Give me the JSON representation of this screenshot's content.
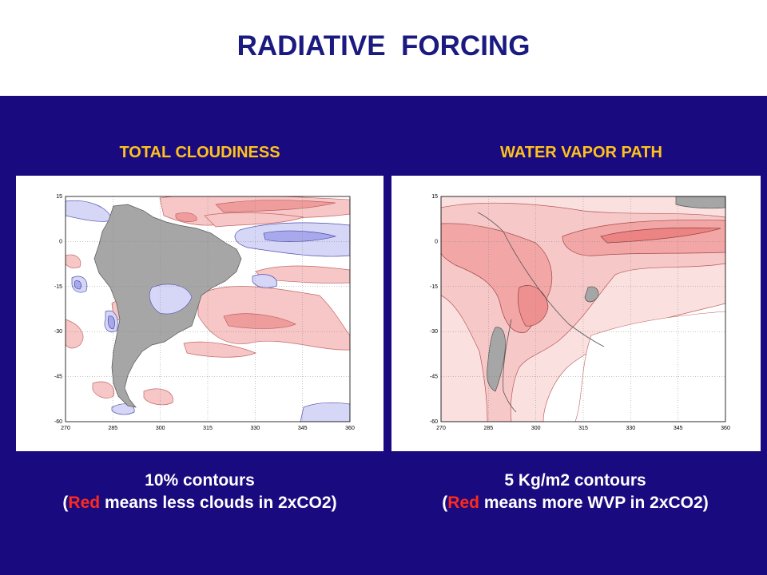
{
  "title": "RADIATIVE  FORCING",
  "colors": {
    "title": "#1a1a80",
    "panel_background": "#1a0a80",
    "subtitle": "#ffc21a",
    "caption": "#ffffff",
    "caption_highlight": "#ff2a1a",
    "land": "#a6a6a6",
    "positive_fill": "#f4b4b4",
    "negative_fill": "#c9c9f4"
  },
  "panels": [
    {
      "subtitle": "TOTAL CLOUDINESS",
      "caption_line1": "10% contours",
      "caption_open": "(",
      "caption_red": "Red",
      "caption_rest": " means less clouds in 2xCO2)"
    },
    {
      "subtitle": "WATER VAPOR PATH",
      "caption_line1": "5 Kg/m2 contours",
      "caption_open": "(",
      "caption_red": "Red",
      "caption_rest": " means more WVP in 2xCO2)"
    }
  ],
  "chart_data": [
    {
      "type": "heatmap",
      "title": "TOTAL CLOUDINESS",
      "xlabel": "",
      "ylabel": "",
      "x_ticks": [
        270,
        285,
        300,
        315,
        330,
        345,
        360
      ],
      "y_ticks": [
        15,
        0,
        -15,
        -30,
        -45,
        -60
      ],
      "xlim": [
        270,
        360
      ],
      "ylim": [
        -60,
        15
      ],
      "grid": true,
      "contour_interval": "10%"
    },
    {
      "type": "heatmap",
      "title": "WATER VAPOR PATH",
      "xlabel": "",
      "ylabel": "",
      "x_ticks": [
        270,
        285,
        300,
        315,
        330,
        345,
        360
      ],
      "y_ticks": [
        15,
        0,
        -15,
        -30,
        -45,
        -60
      ],
      "xlim": [
        270,
        360
      ],
      "ylim": [
        -60,
        15
      ],
      "grid": true,
      "contour_interval": "5 Kg/m2"
    }
  ]
}
